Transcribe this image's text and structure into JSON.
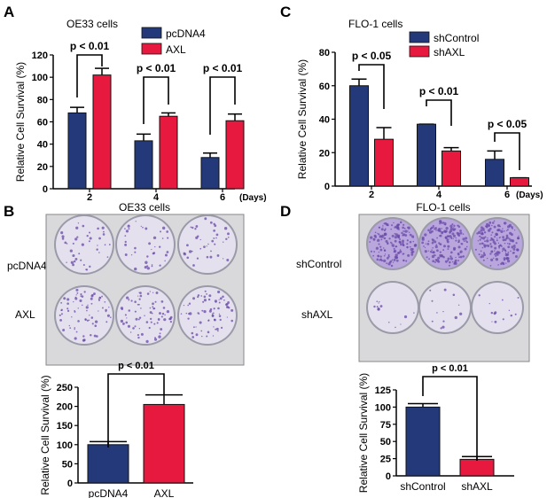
{
  "panels": {
    "a": {
      "letter": "A"
    },
    "b": {
      "letter": "B",
      "title": "OE33 cells",
      "row_labels": [
        "pcDNA4",
        "AXL"
      ]
    },
    "c": {
      "letter": "C"
    },
    "d": {
      "letter": "D",
      "title": "FLO-1 cells",
      "row_labels": [
        "shControl",
        "shAXL"
      ]
    }
  },
  "colors": {
    "blue": "#23397a",
    "red": "#e8193f",
    "stain": "#6a4aa8"
  },
  "chart_data": [
    {
      "id": "A",
      "type": "bar",
      "title": "OE33 cells",
      "categories": [
        "2",
        "4",
        "6"
      ],
      "xunit": "(Days)",
      "ylabel": "Relative Cell Survival (%)",
      "ylim": [
        0,
        120
      ],
      "yticks": [
        0,
        20,
        40,
        60,
        80,
        100,
        120
      ],
      "legend": "top-center",
      "series": [
        {
          "name": "pcDNA4",
          "color": "#23397a",
          "values": [
            68,
            43,
            28
          ],
          "errors": [
            5,
            6,
            4
          ]
        },
        {
          "name": "AXL",
          "color": "#e8193f",
          "values": [
            102,
            65,
            61
          ],
          "errors": [
            6,
            3,
            6
          ]
        }
      ],
      "annotations": [
        "p < 0.01",
        "p < 0.01",
        "p < 0.01"
      ]
    },
    {
      "id": "C",
      "type": "bar",
      "title": "FLO-1 cells",
      "categories": [
        "2",
        "4",
        "6"
      ],
      "xunit": "(Days)",
      "ylabel": "Relative Cell Survival (%)",
      "ylim": [
        0,
        80
      ],
      "yticks": [
        0,
        20,
        40,
        60,
        80
      ],
      "legend": "top-center",
      "series": [
        {
          "name": "shControl",
          "color": "#23397a",
          "values": [
            60,
            37,
            16
          ],
          "errors": [
            4,
            0,
            5
          ]
        },
        {
          "name": "shAXL",
          "color": "#e8193f",
          "values": [
            28,
            21,
            5
          ],
          "errors": [
            7,
            2,
            0
          ]
        }
      ],
      "annotations": [
        "p < 0.05",
        "p < 0.01",
        "p < 0.05"
      ]
    },
    {
      "id": "B",
      "type": "bar",
      "title": "",
      "categories": [
        "pcDNA4",
        "AXL"
      ],
      "xunit": "",
      "ylabel": "Relative Cell Survival (%)",
      "ylim": [
        0,
        250
      ],
      "yticks": [
        0,
        50,
        100,
        150,
        200,
        250
      ],
      "series": [
        {
          "colors": [
            "#23397a",
            "#e8193f"
          ],
          "values": [
            100,
            205
          ],
          "errors": [
            8,
            25
          ]
        }
      ],
      "annotations": [
        "p < 0.01"
      ]
    },
    {
      "id": "D",
      "type": "bar",
      "title": "",
      "categories": [
        "shControl",
        "shAXL"
      ],
      "xunit": "",
      "ylabel": "Relative Cell Survival (%)",
      "ylim": [
        0,
        125
      ],
      "yticks": [
        0,
        25,
        50,
        75,
        100,
        125
      ],
      "series": [
        {
          "colors": [
            "#23397a",
            "#e8193f"
          ],
          "values": [
            100,
            24
          ],
          "errors": [
            5,
            4
          ]
        }
      ],
      "annotations": [
        "p < 0.01"
      ]
    }
  ]
}
